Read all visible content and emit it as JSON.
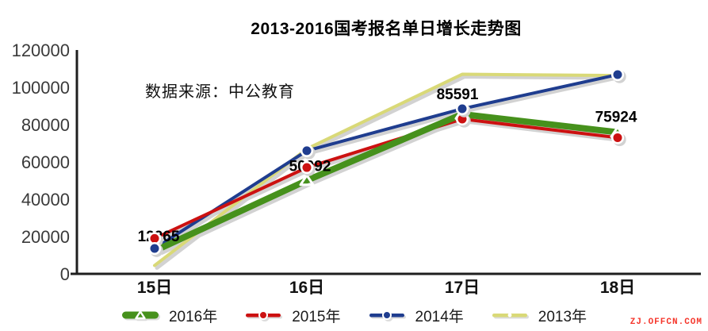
{
  "page": {
    "watermark": "ZJ.OFFCN.COM",
    "watermark_color": "#F5362B",
    "background": "#FFFFFF"
  },
  "chart_data": {
    "type": "line",
    "title": "2013-2016国考报名单日增长走势图",
    "annotation": "数据来源：中公教育",
    "categories": [
      "15日",
      "16日",
      "17日",
      "18日"
    ],
    "series": [
      {
        "name": "2016年",
        "values": [
          12265,
          50092,
          85591,
          75924
        ],
        "color": "#46911C",
        "marker": "triangle",
        "line_width": 8,
        "labeled": true
      },
      {
        "name": "2015年",
        "values": [
          19000,
          57000,
          83000,
          73000
        ],
        "color": "#CC1111",
        "marker": "circle",
        "line_width": 4,
        "labeled": false
      },
      {
        "name": "2014年",
        "values": [
          13600,
          66000,
          88500,
          106800
        ],
        "color": "#1F3D8F",
        "marker": "circle",
        "line_width": 4,
        "labeled": false
      },
      {
        "name": "2013年",
        "values": [
          4500,
          67000,
          107000,
          106300
        ],
        "color": "#D9D977",
        "marker": "none",
        "line_width": 4,
        "labeled": false
      }
    ],
    "data_labels": [
      "12265",
      "50092",
      "85591",
      "75924"
    ],
    "ylim": [
      0,
      120000
    ],
    "ytick_step": 20000,
    "yticks": [
      "0",
      "20000",
      "40000",
      "60000",
      "80000",
      "100000",
      "120000"
    ],
    "grid": false,
    "legend_position": "bottom",
    "shadow": true,
    "colors": {
      "axis": "#1F1F1F",
      "line_shadow": "#D2D2D2",
      "tick_text": "#3A3A3A",
      "data_label_text": "#000000"
    }
  }
}
